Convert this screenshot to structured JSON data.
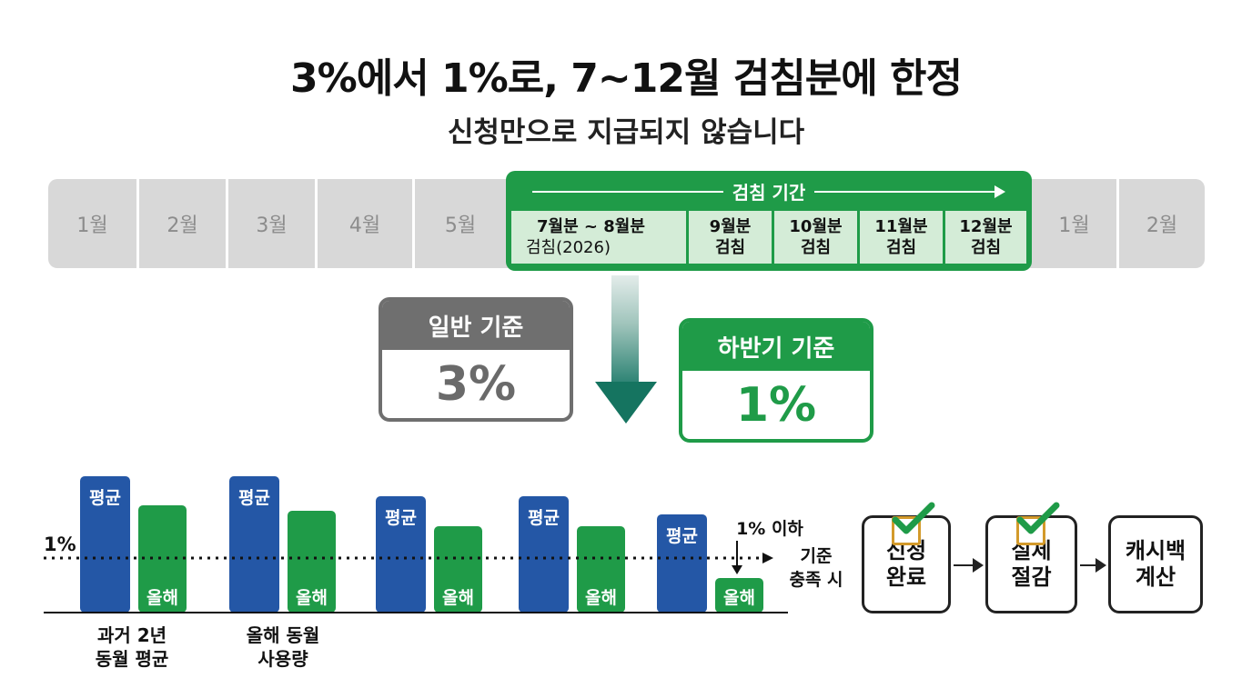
{
  "title": "3%에서 1%로, 7~12월 검침분에 한정",
  "subtitle": "신청만으로 지급되지 않습니다",
  "timeline": {
    "months_before": [
      "1월",
      "2월",
      "3월",
      "4월",
      "5월"
    ],
    "period_label": "검침 기간",
    "period_cells": [
      {
        "line1": "7월분 ~ 8월분",
        "line2": "검침(2026)"
      },
      {
        "line1": "9월분",
        "line2": "검침"
      },
      {
        "line1": "10월분",
        "line2": "검침"
      },
      {
        "line1": "11월분",
        "line2": "검침"
      },
      {
        "line1": "12월분",
        "line2": "검침"
      }
    ],
    "months_after": [
      "1월",
      "2월"
    ]
  },
  "rates": {
    "general": {
      "header": "일반 기준",
      "value": "3%"
    },
    "half_year": {
      "header": "하반기 기준",
      "value": "1%"
    }
  },
  "chart_data": {
    "type": "bar",
    "threshold_label": "1%",
    "threshold": 60,
    "ylim": [
      0,
      150
    ],
    "series_labels": {
      "average": "평균",
      "this_year": "올해"
    },
    "groups": [
      {
        "average": 150,
        "this_year": 118
      },
      {
        "average": 150,
        "this_year": 112
      },
      {
        "average": 128,
        "this_year": 95
      },
      {
        "average": 128,
        "this_year": 95
      },
      {
        "average": 108,
        "this_year": 38
      }
    ],
    "annotation_top": "1% 이하",
    "annotation_side_1": "기준",
    "annotation_side_2": "충족 시",
    "captions": [
      {
        "line1": "과거 2년",
        "line2": "동월 평균"
      },
      {
        "line1": "올해 동월",
        "line2": "사용량"
      }
    ],
    "colors": {
      "average": "#2457a6",
      "this_year": "#1f9b48"
    }
  },
  "steps": [
    {
      "line1": "신청",
      "line2": "완료",
      "checked": true
    },
    {
      "line1": "실제",
      "line2": "절감",
      "checked": true
    },
    {
      "line1": "캐시백",
      "line2": "계산",
      "checked": false
    }
  ],
  "colors": {
    "green": "#1f9b48",
    "green_light": "#d4ecd7",
    "gray": "#6f6f6f",
    "blue": "#2457a6",
    "teal": "#157460",
    "check_box": "#d39a2b"
  }
}
